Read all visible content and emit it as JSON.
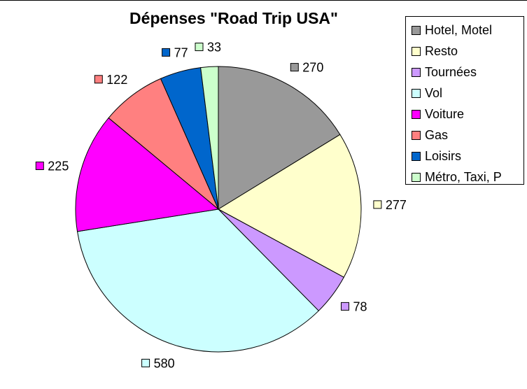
{
  "chart_data": {
    "type": "pie",
    "title": "Dépenses \"Road Trip USA\"",
    "start_angle_deg": 0,
    "direction": "clockwise",
    "legend_position": "right",
    "slices": [
      {
        "label": "Hotel, Motel",
        "value": 270,
        "color": "#999999"
      },
      {
        "label": "Resto",
        "value": 277,
        "color": "#FFFFCC"
      },
      {
        "label": "Tournées",
        "value": 78,
        "color": "#CC99FF"
      },
      {
        "label": "Vol",
        "value": 580,
        "color": "#CCFFFF"
      },
      {
        "label": "Voiture",
        "value": 225,
        "color": "#FF00FF"
      },
      {
        "label": "Gas",
        "value": 122,
        "color": "#FF8080"
      },
      {
        "label": "Loisirs",
        "value": 77,
        "color": "#0066CC"
      },
      {
        "label": "Métro, Taxi, P",
        "value": 33,
        "color": "#CCFFCC"
      }
    ]
  }
}
